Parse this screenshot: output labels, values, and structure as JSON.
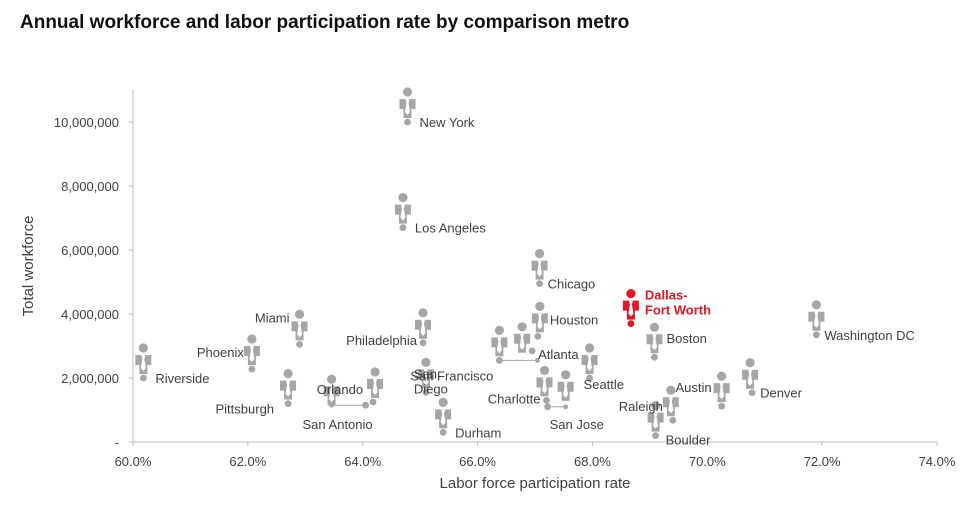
{
  "chart_data": {
    "type": "scatter",
    "title": "Annual workforce and labor participation rate by comparison metro",
    "xlabel": "Labor force participation rate",
    "ylabel": "Total workforce",
    "xlim": [
      60,
      74
    ],
    "ylim": [
      0,
      11000000
    ],
    "x_ticks": [
      {
        "value": 60,
        "label": "60.0%"
      },
      {
        "value": 62,
        "label": "62.0%"
      },
      {
        "value": 64,
        "label": "64.0%"
      },
      {
        "value": 66,
        "label": "66.0%"
      },
      {
        "value": 68,
        "label": "68.0%"
      },
      {
        "value": 70,
        "label": "70.0%"
      },
      {
        "value": 72,
        "label": "72.0%"
      },
      {
        "value": 74,
        "label": "74.0%"
      }
    ],
    "y_ticks": [
      {
        "value": 0,
        "label": "-"
      },
      {
        "value": 2000000,
        "label": "2,000,000"
      },
      {
        "value": 4000000,
        "label": "4,000,000"
      },
      {
        "value": 6000000,
        "label": "6,000,000"
      },
      {
        "value": 8000000,
        "label": "8,000,000"
      },
      {
        "value": 10000000,
        "label": "10,000,000"
      }
    ],
    "grid": false,
    "legend": "none",
    "colors": {
      "default": "#a6a6a6",
      "highlight": "#e8141f",
      "text": "#404040",
      "axis": "#bfbfbf"
    },
    "points": [
      {
        "name": "New York",
        "x": 64.78,
        "y": 10000000
      },
      {
        "name": "Los Angeles",
        "x": 64.7,
        "y": 6700000
      },
      {
        "name": "Chicago",
        "x": 67.08,
        "y": 4950000
      },
      {
        "name": "Dallas-Fort Worth",
        "x": 68.67,
        "y": 3700000,
        "highlight": true
      },
      {
        "name": "Houston",
        "x": 67.05,
        "y": 3300000
      },
      {
        "name": "Washington DC",
        "x": 71.9,
        "y": 3350000
      },
      {
        "name": "Miami",
        "x": 62.9,
        "y": 3050000
      },
      {
        "name": "Philadelphia",
        "x": 65.05,
        "y": 3100000
      },
      {
        "name": "Boston",
        "x": 69.08,
        "y": 2650000
      },
      {
        "name": "Atlanta",
        "x": 66.95,
        "y": 2850000
      },
      {
        "name": "Phoenix",
        "x": 62.07,
        "y": 2280000
      },
      {
        "name": "Riverside",
        "x": 60.18,
        "y": 2000000
      },
      {
        "name": "San Francisco",
        "x": 66.38,
        "y": 2550000
      },
      {
        "name": "Orlando",
        "x": 64.18,
        "y": 1250000
      },
      {
        "name": "Seattle",
        "x": 67.95,
        "y": 2000000
      },
      {
        "name": "Denver",
        "x": 70.78,
        "y": 1540000
      },
      {
        "name": "Austin",
        "x": 70.25,
        "y": 1120000
      },
      {
        "name": "Pittsburgh",
        "x": 62.7,
        "y": 1200000
      },
      {
        "name": "San Diego",
        "x": 65.1,
        "y": 1550000
      },
      {
        "name": "Charlotte",
        "x": 67.2,
        "y": 1300000
      },
      {
        "name": "Raleigh",
        "x": 69.4,
        "y": 680000
      },
      {
        "name": "San Antonio",
        "x": 64.05,
        "y": 1150000
      },
      {
        "name": "San Jose",
        "x": 67.22,
        "y": 1100000
      },
      {
        "name": "Durham",
        "x": 65.4,
        "y": 300000
      },
      {
        "name": "Boulder",
        "x": 69.1,
        "y": 200000
      }
    ]
  }
}
